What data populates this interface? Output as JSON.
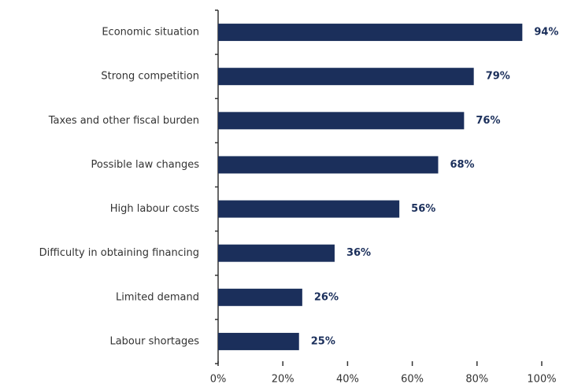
{
  "chart_data": {
    "type": "bar",
    "orientation": "horizontal",
    "categories": [
      "Economic situation",
      "Strong competition",
      "Taxes and other fiscal burden",
      "Possible law changes",
      "High labour costs",
      "Difficulty in obtaining financing",
      "Limited demand",
      "Labour shortages"
    ],
    "values": [
      94,
      79,
      76,
      68,
      56,
      36,
      26,
      25
    ],
    "value_labels": [
      "94%",
      "79%",
      "76%",
      "68%",
      "56%",
      "36%",
      "26%",
      "25%"
    ],
    "color": "#1b2f5b",
    "xlim": [
      0,
      100
    ],
    "xticks": [
      {
        "value": 0,
        "label": "0%"
      },
      {
        "value": 20,
        "label": "20%"
      },
      {
        "value": 40,
        "label": "40%"
      },
      {
        "value": 60,
        "label": "60%"
      },
      {
        "value": 80,
        "label": "80%"
      },
      {
        "value": 100,
        "label": "100%"
      }
    ],
    "grid": false
  }
}
